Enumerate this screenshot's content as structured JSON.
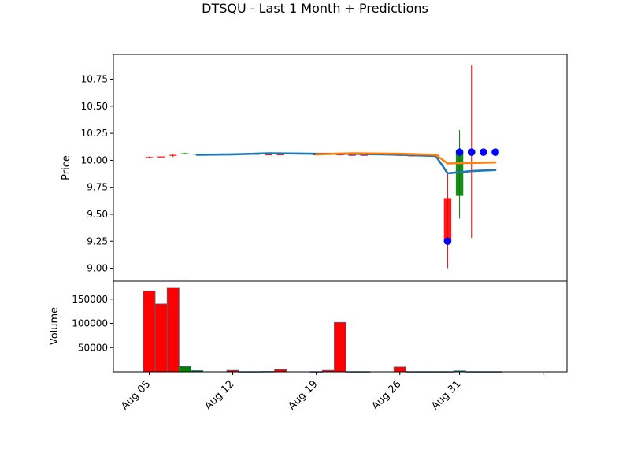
{
  "chart_data": {
    "type": "candlestick",
    "title": "DTSQU - Last 1 Month + Predictions",
    "price_panel": {
      "ylabel": "Price",
      "ylim": [
        8.88,
        10.98
      ],
      "yticks": [
        "9.00",
        "9.25",
        "9.50",
        "9.75",
        "10.00",
        "10.25",
        "10.50",
        "10.75"
      ],
      "candles": [
        {
          "date": "2024-08-05",
          "open": 10.03,
          "high": 10.035,
          "low": 10.025,
          "close": 10.03,
          "dir": "down"
        },
        {
          "date": "2024-08-06",
          "open": 10.035,
          "high": 10.04,
          "low": 10.03,
          "close": 10.035,
          "dir": "down"
        },
        {
          "date": "2024-08-07",
          "open": 10.05,
          "high": 10.06,
          "low": 10.03,
          "close": 10.045,
          "dir": "down"
        },
        {
          "date": "2024-08-08",
          "open": 10.06,
          "high": 10.07,
          "low": 10.06,
          "close": 10.065,
          "dir": "up"
        },
        {
          "date": "2024-08-09",
          "open": 10.055,
          "high": 10.06,
          "low": 10.05,
          "close": 10.06,
          "dir": "up"
        },
        {
          "date": "2024-08-12",
          "open": 10.06,
          "high": 10.065,
          "low": 10.055,
          "close": 10.06,
          "dir": "up"
        },
        {
          "date": "2024-08-14",
          "open": 10.055,
          "high": 10.06,
          "low": 10.05,
          "close": 10.06,
          "dir": "up"
        },
        {
          "date": "2024-08-15",
          "open": 10.055,
          "high": 10.06,
          "low": 10.05,
          "close": 10.055,
          "dir": "down"
        },
        {
          "date": "2024-08-16",
          "open": 10.055,
          "high": 10.06,
          "low": 10.05,
          "close": 10.055,
          "dir": "down"
        },
        {
          "date": "2024-08-19",
          "open": 10.055,
          "high": 10.06,
          "low": 10.05,
          "close": 10.055,
          "dir": "down"
        },
        {
          "date": "2024-08-20",
          "open": 10.06,
          "high": 10.065,
          "low": 10.05,
          "close": 10.055,
          "dir": "down"
        },
        {
          "date": "2024-08-21",
          "open": 10.055,
          "high": 10.06,
          "low": 10.045,
          "close": 10.05,
          "dir": "down"
        },
        {
          "date": "2024-08-22",
          "open": 10.05,
          "high": 10.055,
          "low": 10.045,
          "close": 10.05,
          "dir": "down"
        },
        {
          "date": "2024-08-23",
          "open": 10.05,
          "high": 10.055,
          "low": 10.045,
          "close": 10.05,
          "dir": "down"
        },
        {
          "date": "2024-08-26",
          "open": 10.05,
          "high": 10.055,
          "low": 10.04,
          "close": 10.045,
          "dir": "down"
        },
        {
          "date": "2024-08-27",
          "open": 10.045,
          "high": 10.05,
          "low": 10.035,
          "close": 10.04,
          "dir": "down"
        },
        {
          "date": "2024-08-28",
          "open": 10.05,
          "high": 10.055,
          "low": 10.045,
          "close": 10.05,
          "dir": "down"
        },
        {
          "date": "2024-08-29",
          "open": 10.05,
          "high": 10.055,
          "low": 10.045,
          "close": 10.05,
          "dir": "down"
        },
        {
          "date": "2024-08-30",
          "open": 9.65,
          "high": 9.88,
          "low": 9.0,
          "close": 9.25,
          "dir": "down"
        },
        {
          "date": "2024-08-31",
          "open": 9.67,
          "high": 10.28,
          "low": 9.46,
          "close": 10.07,
          "dir": "up"
        },
        {
          "date": "2024-09-01",
          "open": 10.08,
          "high": 10.88,
          "low": 9.28,
          "close": 10.07,
          "dir": "down"
        }
      ],
      "series": [
        {
          "color": "#1f77b4",
          "points": [
            [
              "2024-08-09",
              10.05
            ],
            [
              "2024-08-12",
              10.055
            ],
            [
              "2024-08-15",
              10.065
            ],
            [
              "2024-08-19",
              10.06
            ],
            [
              "2024-08-22",
              10.06
            ],
            [
              "2024-08-26",
              10.05
            ],
            [
              "2024-08-29",
              10.04
            ],
            [
              "2024-08-30",
              9.88
            ],
            [
              "2024-09-01",
              9.9
            ],
            [
              "2024-09-03",
              9.91
            ]
          ]
        },
        {
          "color": "#ff7f0e",
          "points": [
            [
              "2024-08-19",
              10.055
            ],
            [
              "2024-08-22",
              10.065
            ],
            [
              "2024-08-26",
              10.06
            ],
            [
              "2024-08-29",
              10.05
            ],
            [
              "2024-08-30",
              9.97
            ],
            [
              "2024-09-01",
              9.975
            ],
            [
              "2024-09-03",
              9.98
            ]
          ]
        }
      ],
      "markers": {
        "color": "#0000ff",
        "points": [
          [
            "2024-08-30",
            9.25
          ],
          [
            "2024-08-31",
            10.075
          ],
          [
            "2024-09-01",
            10.075
          ],
          [
            "2024-09-02",
            10.075
          ],
          [
            "2024-09-03",
            10.075
          ]
        ]
      }
    },
    "volume_panel": {
      "ylabel": "Volume",
      "ylim": [
        0,
        187000
      ],
      "yticks": [
        "50000",
        "100000",
        "150000"
      ],
      "bars": [
        {
          "date": "2024-08-05",
          "value": 167000,
          "dir": "down"
        },
        {
          "date": "2024-08-06",
          "value": 140000,
          "dir": "down"
        },
        {
          "date": "2024-08-07",
          "value": 174000,
          "dir": "down"
        },
        {
          "date": "2024-08-08",
          "value": 11000,
          "dir": "up"
        },
        {
          "date": "2024-08-09",
          "value": 2500,
          "dir": "up"
        },
        {
          "date": "2024-08-12",
          "value": 3000,
          "dir": "down"
        },
        {
          "date": "2024-08-13",
          "value": 500,
          "dir": "up"
        },
        {
          "date": "2024-08-14",
          "value": 500,
          "dir": "up"
        },
        {
          "date": "2024-08-15",
          "value": 800,
          "dir": "up"
        },
        {
          "date": "2024-08-16",
          "value": 5000,
          "dir": "down"
        },
        {
          "date": "2024-08-19",
          "value": 500,
          "dir": "up"
        },
        {
          "date": "2024-08-20",
          "value": 3000,
          "dir": "down"
        },
        {
          "date": "2024-08-21",
          "value": 102000,
          "dir": "down"
        },
        {
          "date": "2024-08-22",
          "value": 500,
          "dir": "up"
        },
        {
          "date": "2024-08-23",
          "value": 500,
          "dir": "up"
        },
        {
          "date": "2024-08-26",
          "value": 10000,
          "dir": "down"
        },
        {
          "date": "2024-08-27",
          "value": 500,
          "dir": "up"
        },
        {
          "date": "2024-08-28",
          "value": 500,
          "dir": "up"
        },
        {
          "date": "2024-08-29",
          "value": 500,
          "dir": "up"
        },
        {
          "date": "2024-08-30",
          "value": 500,
          "dir": "up"
        },
        {
          "date": "2024-08-31",
          "value": 2000,
          "dir": "up"
        },
        {
          "date": "2024-09-01",
          "value": 500,
          "dir": "up"
        },
        {
          "date": "2024-09-02",
          "value": 500,
          "dir": "up"
        },
        {
          "date": "2024-09-03",
          "value": 500,
          "dir": "up"
        }
      ]
    },
    "x_axis": {
      "range": [
        "2024-08-02",
        "2024-09-09"
      ],
      "ticks": [
        {
          "date": "2024-08-05",
          "label": "Aug 05"
        },
        {
          "date": "2024-08-12",
          "label": "Aug 12"
        },
        {
          "date": "2024-08-19",
          "label": "Aug 19"
        },
        {
          "date": "2024-08-26",
          "label": "Aug 26"
        },
        {
          "date": "2024-08-31",
          "label": "Aug 31"
        },
        {
          "date": "2024-09-07",
          "label": ""
        }
      ]
    },
    "colors": {
      "up": "#008000",
      "down": "#ff0000",
      "volume_edge": "#4a6a8a"
    }
  }
}
